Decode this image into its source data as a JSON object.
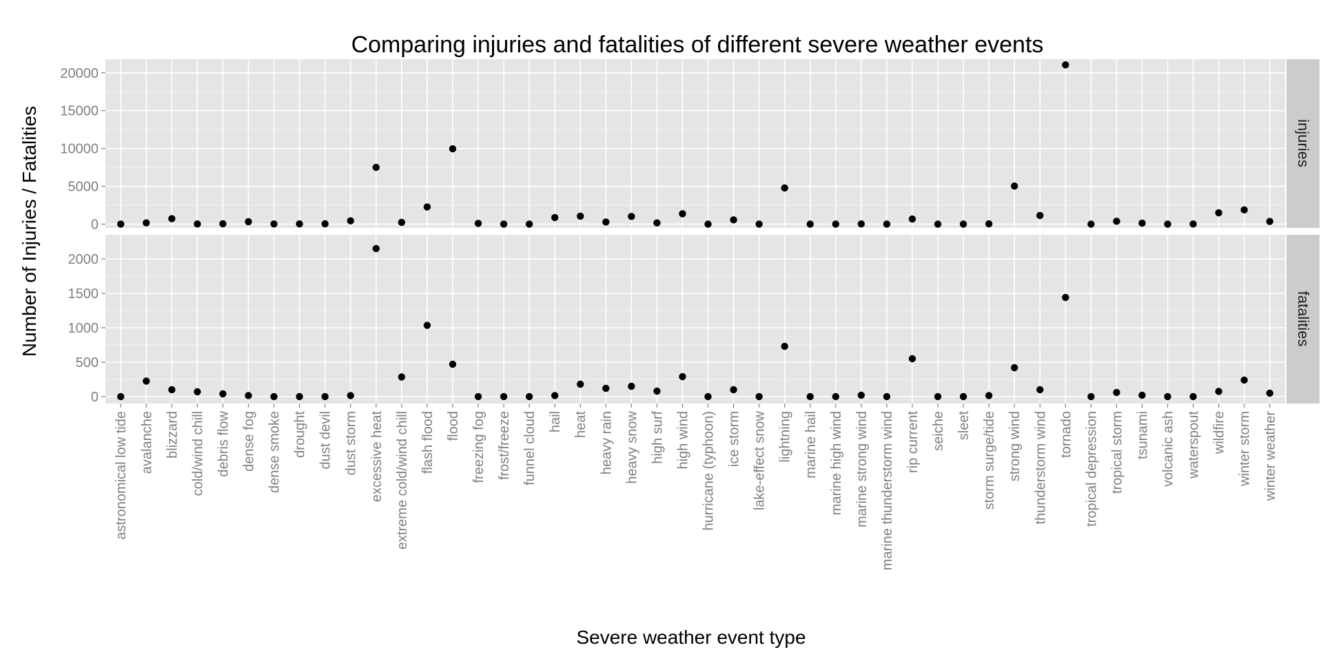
{
  "chart_data": {
    "type": "scatter",
    "title": "Comparing injuries and fatalities of different severe weather events",
    "xlabel": "Severe weather event type",
    "ylabel": "Number of Injuries / Fatalities",
    "grid": true,
    "categories": [
      "astronomical low tide",
      "avalanche",
      "blizzard",
      "cold/wind chill",
      "debris flow",
      "dense fog",
      "dense smoke",
      "drought",
      "dust devil",
      "dust storm",
      "excessive heat",
      "extreme cold/wind chill",
      "flash flood",
      "flood",
      "freezing fog",
      "frost/freeze",
      "funnel cloud",
      "hail",
      "heat",
      "heavy rain",
      "heavy snow",
      "high surf",
      "high wind",
      "hurricane (typhoon)",
      "ice storm",
      "lake-effect snow",
      "lightning",
      "marine hail",
      "marine high wind",
      "marine strong wind",
      "marine thunderstorm wind",
      "rip current",
      "seiche",
      "sleet",
      "storm surge/tide",
      "strong wind",
      "thunderstorm wind",
      "tornado",
      "tropical depression",
      "tropical storm",
      "tsunami",
      "volcanic ash",
      "waterspout",
      "wildfire",
      "winter storm",
      "winter weather"
    ],
    "panels": [
      {
        "name": "injuries",
        "ylim": [
          -500,
          21800
        ],
        "yticks": [
          0,
          5000,
          10000,
          15000,
          20000
        ],
        "values": [
          5,
          170,
          720,
          15,
          55,
          320,
          20,
          30,
          45,
          440,
          7500,
          230,
          2270,
          9960,
          100,
          5,
          5,
          870,
          1050,
          280,
          1020,
          160,
          1370,
          0,
          560,
          10,
          4780,
          0,
          5,
          25,
          5,
          680,
          0,
          0,
          40,
          5030,
          1140,
          21050,
          0,
          380,
          130,
          0,
          15,
          1500,
          1880,
          360
        ]
      },
      {
        "name": "fatalities",
        "ylim": [
          -100,
          2350
        ],
        "yticks": [
          0,
          500,
          1000,
          1500,
          2000
        ],
        "values": [
          0,
          225,
          100,
          70,
          40,
          15,
          0,
          0,
          0,
          15,
          2150,
          285,
          1035,
          470,
          0,
          0,
          0,
          15,
          180,
          120,
          150,
          80,
          290,
          0,
          100,
          0,
          730,
          0,
          0,
          20,
          0,
          550,
          0,
          0,
          15,
          420,
          100,
          1440,
          0,
          60,
          20,
          0,
          0,
          75,
          240,
          50
        ]
      }
    ]
  }
}
